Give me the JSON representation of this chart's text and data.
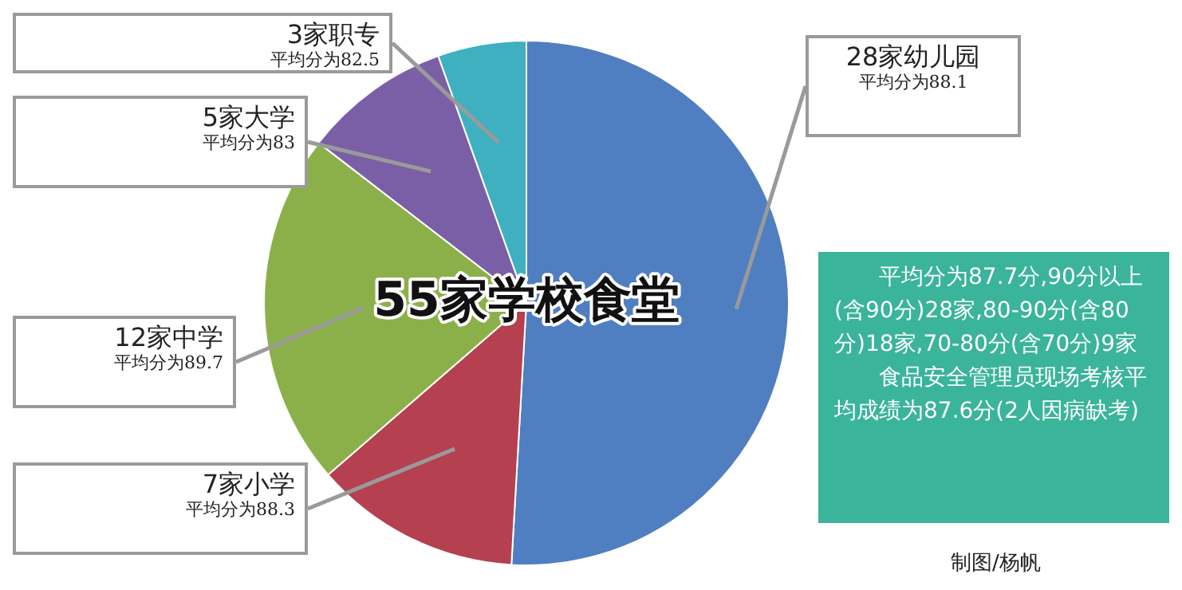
{
  "chart_data": {
    "type": "pie",
    "title": "55家学校食堂",
    "categories": [
      "28家幼儿园",
      "7家小学",
      "12家中学",
      "5家大学",
      "3家职专"
    ],
    "values": [
      28,
      7,
      12,
      5,
      3
    ],
    "colors": [
      "#4f7fc0",
      "#b5404f",
      "#8bb04a",
      "#7b5fa6",
      "#3fb0c0"
    ],
    "legend": false,
    "annotations": [
      "平均分为88.1",
      "平均分为88.3",
      "平均分为89.7",
      "平均分为83",
      "平均分为82.5",
      "平均分为87.7分,90分以上(含90分)28家,80-90分(含80分)18家,70-80分(含70分)9家",
      "食品安全管理员现场考核平均成绩为87.6分(2人因病缺考)",
      "制图/杨帆"
    ]
  }
}
